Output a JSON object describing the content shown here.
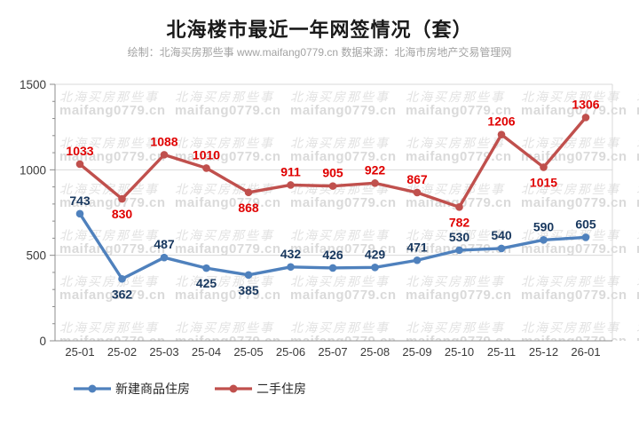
{
  "header": {
    "title": "北海楼市最近一年网签情况（套）",
    "subtitle": "绘制：北海买房那些事 www.maifang0779.cn 数据来源：北海市房地产交易管理网"
  },
  "watermark": {
    "line1": "北海买房那些事",
    "line2": "maifang0779.cn"
  },
  "chart_data": {
    "type": "line",
    "title": "北海楼市最近一年网签情况（套）",
    "categories": [
      "25-01",
      "25-02",
      "25-03",
      "25-04",
      "25-05",
      "25-06",
      "25-07",
      "25-08",
      "25-09",
      "25-10",
      "25-11",
      "25-12",
      "26-01"
    ],
    "series": [
      {
        "name": "新建商品住房",
        "color": "#4F81BD",
        "label_color": "#17375E",
        "values": [
          743,
          362,
          487,
          425,
          385,
          432,
          426,
          429,
          471,
          530,
          540,
          590,
          605
        ],
        "label_below_indices": [
          1,
          3,
          4
        ]
      },
      {
        "name": "二手住房",
        "color": "#C0504D",
        "label_color": "#E00000",
        "values": [
          1033,
          830,
          1088,
          1010,
          868,
          911,
          905,
          922,
          867,
          782,
          1206,
          1015,
          1306
        ],
        "label_below_indices": [
          1,
          4,
          9,
          11
        ]
      }
    ],
    "ylim": [
      0,
      1500
    ],
    "yticks": [
      0,
      500,
      1000,
      1500
    ],
    "minor_tick_step": 100,
    "grid": true,
    "legend_position": "bottom-left",
    "axis_color": "#8c8c8c",
    "grid_color": "#d9d9d9",
    "tick_label_color": "#3a3a3a"
  }
}
